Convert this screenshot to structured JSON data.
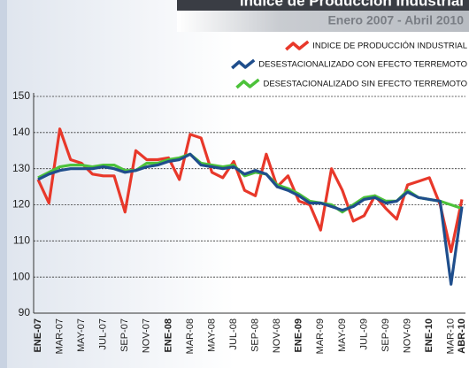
{
  "chart_data": {
    "type": "line",
    "title": "Índice de Producción Industrial",
    "subtitle": "Enero 2007 - Abril 2010",
    "categories": [
      "ENE-07",
      null,
      "MAR-07",
      null,
      "MAY-07",
      null,
      "JUL-07",
      null,
      "SEP-07",
      null,
      "NOV-07",
      null,
      "ENE-08",
      null,
      "MAR-08",
      null,
      "MAY-08",
      null,
      "JUL-08",
      null,
      "SEP-08",
      null,
      "NOV-08",
      null,
      "ENE-09",
      null,
      "MAR-09",
      null,
      "MAY-09",
      null,
      "JUL-09",
      null,
      "SEP-09",
      null,
      "NOV-09",
      null,
      "ENE-10",
      null,
      "MAR-10",
      "ABR-10"
    ],
    "series": [
      {
        "name": "INDICE DE PRODUCCIÓN INDUSTRIAL",
        "color": "#e8382a",
        "values": [
          127,
          120.5,
          141,
          132.5,
          131.5,
          128.5,
          128,
          128,
          118,
          135,
          132.5,
          132.5,
          133,
          127,
          139.5,
          138.5,
          129,
          127.5,
          132,
          124,
          122.5,
          134,
          125,
          128,
          121,
          120,
          113,
          130,
          124,
          115.5,
          117,
          122.5,
          119,
          116,
          125.5,
          126.5,
          127.5,
          120,
          107,
          121.5
        ]
      },
      {
        "name": "DESESTACIONALIZADO CON EFECTO TERREMOTO",
        "color": "#1f4e8c",
        "values": [
          127,
          128.5,
          129.5,
          130,
          130,
          130,
          130.5,
          130,
          129,
          129.5,
          130.5,
          131,
          132,
          132.5,
          134,
          131,
          130.5,
          130,
          130.5,
          128.5,
          129.5,
          128.5,
          125,
          124,
          122.5,
          120.5,
          120.5,
          119.5,
          118.5,
          119.5,
          121.5,
          122,
          120.5,
          121,
          123.5,
          122,
          121.5,
          121,
          98,
          119.5
        ]
      },
      {
        "name": "DESESTACIONALIZADO SIN EFECTO TERREMOTO",
        "color": "#4cc23a",
        "values": [
          127.5,
          129,
          130.5,
          131,
          131,
          130.5,
          131,
          131,
          129.5,
          129.5,
          131.5,
          131.5,
          132.5,
          133,
          134,
          131.5,
          131,
          130.5,
          131,
          128,
          129,
          128.5,
          125.5,
          124.5,
          123,
          121,
          120.5,
          120,
          118,
          120,
          122,
          122.5,
          121,
          121,
          124,
          122,
          121.5,
          121,
          120,
          119
        ]
      }
    ],
    "ylim": [
      90,
      150
    ],
    "yticks": [
      90,
      100,
      110,
      120,
      130,
      140,
      150
    ],
    "grid": true,
    "legend": "upper right"
  }
}
